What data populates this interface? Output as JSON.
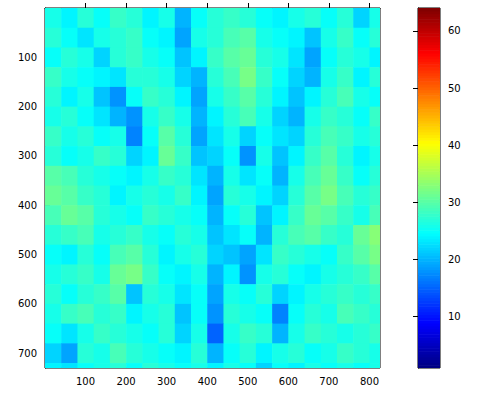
{
  "chart_data": {
    "type": "heatmap",
    "x": [
      20,
      60,
      100,
      140,
      180,
      220,
      260,
      300,
      340,
      380,
      420,
      460,
      500,
      540,
      580,
      620,
      660,
      700,
      740,
      780,
      820
    ],
    "y": [
      20,
      60,
      100,
      140,
      180,
      220,
      260,
      300,
      340,
      380,
      420,
      460,
      500,
      540,
      580,
      620,
      660,
      700,
      740
    ],
    "values": [
      [
        26,
        24,
        27,
        25,
        28,
        27,
        24,
        26,
        20,
        25,
        27,
        28,
        27,
        25,
        24,
        26,
        27,
        25,
        27,
        22,
        26
      ],
      [
        27,
        25,
        23,
        26,
        27,
        28,
        25,
        24,
        19,
        26,
        27,
        29,
        30,
        26,
        25,
        24,
        21,
        26,
        28,
        25,
        27
      ],
      [
        25,
        27,
        26,
        22,
        27,
        28,
        26,
        25,
        21,
        24,
        28,
        30,
        31,
        27,
        26,
        23,
        19,
        25,
        27,
        26,
        24
      ],
      [
        28,
        26,
        25,
        24,
        23,
        27,
        27,
        26,
        22,
        20,
        27,
        29,
        32,
        28,
        25,
        22,
        20,
        26,
        28,
        24,
        27
      ],
      [
        27,
        24,
        26,
        21,
        18,
        25,
        28,
        27,
        24,
        19,
        26,
        28,
        30,
        27,
        24,
        21,
        24,
        27,
        29,
        26,
        25
      ],
      [
        26,
        27,
        25,
        23,
        20,
        18,
        26,
        28,
        26,
        20,
        24,
        27,
        29,
        26,
        22,
        20,
        26,
        28,
        27,
        25,
        28
      ],
      [
        28,
        26,
        27,
        25,
        26,
        17,
        25,
        30,
        27,
        19,
        23,
        26,
        22,
        25,
        23,
        22,
        27,
        29,
        28,
        26,
        27
      ],
      [
        27,
        25,
        26,
        28,
        27,
        22,
        24,
        31,
        28,
        21,
        22,
        25,
        18,
        26,
        21,
        24,
        28,
        30,
        27,
        24,
        26
      ],
      [
        30,
        29,
        27,
        26,
        25,
        24,
        26,
        28,
        27,
        23,
        20,
        26,
        23,
        25,
        20,
        26,
        29,
        31,
        28,
        25,
        27
      ],
      [
        31,
        30,
        28,
        27,
        24,
        26,
        27,
        26,
        28,
        24,
        19,
        27,
        26,
        24,
        22,
        27,
        30,
        32,
        29,
        27,
        28
      ],
      [
        29,
        31,
        30,
        27,
        26,
        25,
        28,
        27,
        26,
        25,
        20,
        25,
        27,
        21,
        24,
        28,
        31,
        30,
        28,
        26,
        29
      ],
      [
        27,
        28,
        29,
        26,
        27,
        28,
        26,
        25,
        27,
        26,
        21,
        23,
        25,
        20,
        27,
        29,
        30,
        28,
        27,
        31,
        33
      ],
      [
        25,
        24,
        27,
        25,
        29,
        30,
        27,
        24,
        26,
        27,
        22,
        21,
        19,
        23,
        28,
        27,
        26,
        25,
        28,
        30,
        32
      ],
      [
        26,
        27,
        28,
        26,
        31,
        32,
        28,
        25,
        24,
        26,
        20,
        24,
        18,
        26,
        27,
        25,
        24,
        26,
        27,
        28,
        30
      ],
      [
        27,
        25,
        27,
        28,
        30,
        21,
        27,
        26,
        23,
        25,
        19,
        26,
        25,
        27,
        22,
        24,
        26,
        27,
        28,
        27,
        28
      ],
      [
        26,
        28,
        29,
        27,
        28,
        24,
        26,
        27,
        21,
        25,
        18,
        27,
        26,
        25,
        17,
        25,
        27,
        26,
        29,
        28,
        27
      ],
      [
        25,
        23,
        26,
        28,
        27,
        26,
        25,
        27,
        22,
        26,
        15,
        26,
        28,
        27,
        20,
        26,
        28,
        27,
        26,
        27,
        28
      ],
      [
        22,
        19,
        27,
        26,
        29,
        27,
        26,
        25,
        24,
        27,
        20,
        25,
        27,
        24,
        26,
        27,
        25,
        26,
        28,
        27,
        26
      ],
      [
        24,
        23,
        25,
        26,
        27,
        25,
        27,
        26,
        25,
        26,
        24,
        26,
        25,
        22,
        25,
        24,
        26,
        25,
        26,
        25,
        26
      ]
    ],
    "xlim": [
      0,
      826
    ],
    "ylim": [
      0,
      730
    ],
    "xticks": [
      100,
      200,
      300,
      400,
      500,
      600,
      700,
      800
    ],
    "yticks": [
      100,
      200,
      300,
      400,
      500,
      600,
      700
    ],
    "colorbar": {
      "range": [
        1,
        64
      ],
      "ticks": [
        10,
        20,
        30,
        40,
        50,
        60
      ]
    }
  }
}
